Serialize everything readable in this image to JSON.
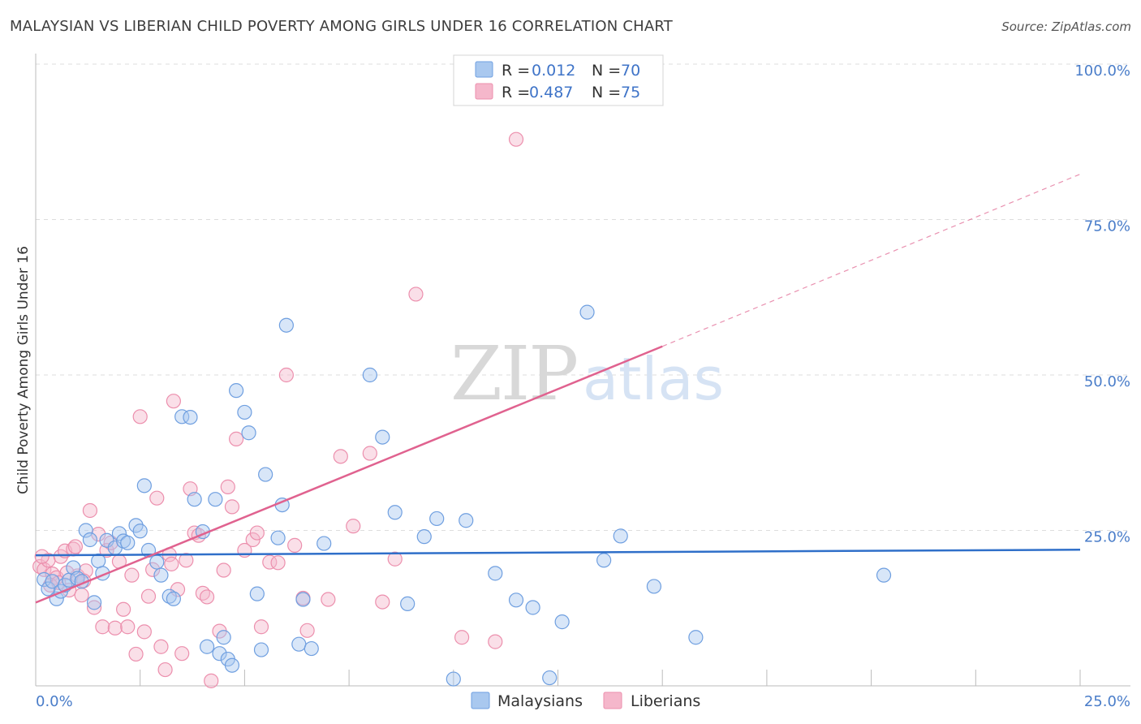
{
  "title": "MALAYSIAN VS LIBERIAN CHILD POVERTY AMONG GIRLS UNDER 16 CORRELATION CHART",
  "source": "Source: ZipAtlas.com",
  "watermark": {
    "zip": "ZIP",
    "atlas": "atlas"
  },
  "legend_top": {
    "rows": [
      {
        "r_label": "R =",
        "r_value": "0.012",
        "n_label": "N =",
        "n_value": "70"
      },
      {
        "r_label": "R =",
        "r_value": "0.487",
        "n_label": "N =",
        "n_value": "75"
      }
    ]
  },
  "legend_bottom": {
    "items": [
      "Malaysians",
      "Liberians"
    ]
  },
  "colors": {
    "blue_fill": "#a9c8ef",
    "blue_stroke": "#6f9fe0",
    "blue_line": "#2f6fc9",
    "pink_fill": "#f5b7cb",
    "pink_stroke": "#ec8fad",
    "pink_line": "#e0628f",
    "tick_text": "#4a7dc9",
    "grid": "#dddddd"
  },
  "chart_data": {
    "type": "scatter",
    "title": "MALAYSIAN VS LIBERIAN CHILD POVERTY AMONG GIRLS UNDER 16 CORRELATION CHART",
    "xlabel": "",
    "ylabel": "Child Poverty Among Girls Under 16",
    "xlim": [
      0,
      25
    ],
    "ylim": [
      0,
      100
    ],
    "x_tick_labels": [
      "0.0%",
      "25.0%"
    ],
    "y_tick_labels": [
      "25.0%",
      "50.0%",
      "75.0%",
      "100.0%"
    ],
    "y_ticks": [
      25,
      50,
      75,
      100
    ],
    "grid": true,
    "series": [
      {
        "name": "Malaysians",
        "R": 0.012,
        "N": 70,
        "trend": {
          "x0": 0,
          "y0": 21.0,
          "x1": 25,
          "y1": 21.9,
          "style": "solid"
        },
        "points": [
          [
            0.2,
            17.1
          ],
          [
            0.3,
            15.6
          ],
          [
            0.4,
            16.8
          ],
          [
            0.5,
            14.0
          ],
          [
            0.6,
            15.2
          ],
          [
            0.7,
            16.2
          ],
          [
            0.8,
            17.0
          ],
          [
            0.9,
            19.0
          ],
          [
            1.0,
            17.3
          ],
          [
            1.1,
            16.8
          ],
          [
            1.2,
            25.0
          ],
          [
            1.3,
            23.5
          ],
          [
            1.4,
            13.4
          ],
          [
            1.5,
            20.1
          ],
          [
            1.6,
            18.1
          ],
          [
            1.7,
            23.4
          ],
          [
            1.9,
            22.2
          ],
          [
            2.0,
            24.5
          ],
          [
            2.1,
            23.3
          ],
          [
            2.2,
            23.0
          ],
          [
            2.4,
            25.8
          ],
          [
            2.5,
            24.9
          ],
          [
            2.6,
            32.2
          ],
          [
            2.7,
            21.8
          ],
          [
            2.9,
            19.9
          ],
          [
            3.0,
            17.8
          ],
          [
            3.2,
            14.4
          ],
          [
            3.3,
            14.0
          ],
          [
            3.5,
            43.3
          ],
          [
            3.7,
            43.2
          ],
          [
            3.8,
            30.0
          ],
          [
            4.0,
            24.8
          ],
          [
            4.1,
            6.3
          ],
          [
            4.3,
            30.0
          ],
          [
            4.4,
            5.2
          ],
          [
            4.5,
            7.8
          ],
          [
            4.6,
            4.3
          ],
          [
            4.7,
            3.3
          ],
          [
            4.8,
            47.5
          ],
          [
            5.0,
            44.0
          ],
          [
            5.1,
            40.7
          ],
          [
            5.3,
            14.8
          ],
          [
            5.4,
            5.8
          ],
          [
            5.5,
            34.0
          ],
          [
            5.8,
            23.8
          ],
          [
            5.9,
            29.1
          ],
          [
            6.0,
            58.0
          ],
          [
            6.3,
            6.7
          ],
          [
            6.4,
            13.9
          ],
          [
            6.6,
            6.0
          ],
          [
            6.9,
            22.9
          ],
          [
            8.0,
            50.0
          ],
          [
            8.3,
            40.0
          ],
          [
            8.6,
            27.9
          ],
          [
            8.9,
            13.2
          ],
          [
            9.3,
            24.0
          ],
          [
            9.6,
            26.9
          ],
          [
            10.0,
            1.1
          ],
          [
            10.3,
            26.6
          ],
          [
            11.0,
            18.1
          ],
          [
            11.5,
            13.8
          ],
          [
            11.9,
            12.6
          ],
          [
            12.3,
            1.3
          ],
          [
            12.6,
            10.3
          ],
          [
            13.2,
            60.1
          ],
          [
            13.6,
            20.2
          ],
          [
            14.0,
            24.1
          ],
          [
            14.8,
            16.0
          ],
          [
            15.8,
            7.8
          ],
          [
            20.3,
            17.8
          ]
        ]
      },
      {
        "name": "Liberians",
        "R": 0.487,
        "N": 75,
        "trend": {
          "x0": 0,
          "y0": 13.4,
          "x1": 15,
          "y1": 54.6,
          "x2": 25,
          "y2": 82.3,
          "style": "solid-then-dashed"
        },
        "points": [
          [
            0.1,
            19.2
          ],
          [
            0.2,
            18.7
          ],
          [
            0.3,
            20.2
          ],
          [
            0.4,
            18.0
          ],
          [
            0.5,
            17.4
          ],
          [
            0.6,
            20.8
          ],
          [
            0.7,
            21.7
          ],
          [
            0.8,
            15.4
          ],
          [
            0.9,
            22.0
          ],
          [
            1.0,
            17.7
          ],
          [
            1.1,
            14.6
          ],
          [
            1.2,
            18.5
          ],
          [
            1.3,
            28.2
          ],
          [
            1.4,
            12.6
          ],
          [
            1.5,
            24.4
          ],
          [
            1.6,
            9.5
          ],
          [
            1.7,
            21.8
          ],
          [
            1.8,
            23.0
          ],
          [
            1.9,
            9.3
          ],
          [
            2.0,
            20.0
          ],
          [
            2.1,
            12.3
          ],
          [
            2.2,
            9.5
          ],
          [
            2.3,
            17.8
          ],
          [
            2.4,
            5.1
          ],
          [
            2.5,
            43.3
          ],
          [
            2.6,
            8.7
          ],
          [
            2.7,
            14.4
          ],
          [
            2.8,
            18.7
          ],
          [
            2.9,
            30.2
          ],
          [
            3.0,
            6.3
          ],
          [
            3.1,
            2.6
          ],
          [
            3.2,
            21.1
          ],
          [
            3.3,
            45.8
          ],
          [
            3.4,
            15.5
          ],
          [
            3.5,
            5.2
          ],
          [
            3.6,
            20.2
          ],
          [
            3.7,
            31.7
          ],
          [
            3.8,
            24.6
          ],
          [
            3.9,
            24.2
          ],
          [
            4.0,
            14.9
          ],
          [
            4.1,
            14.3
          ],
          [
            4.2,
            0.8
          ],
          [
            4.4,
            8.8
          ],
          [
            4.5,
            18.6
          ],
          [
            4.6,
            32.0
          ],
          [
            4.7,
            28.8
          ],
          [
            4.8,
            39.7
          ],
          [
            5.0,
            21.8
          ],
          [
            5.2,
            23.5
          ],
          [
            5.3,
            24.6
          ],
          [
            5.4,
            9.5
          ],
          [
            5.6,
            19.9
          ],
          [
            5.8,
            19.8
          ],
          [
            6.0,
            50.0
          ],
          [
            6.2,
            22.6
          ],
          [
            6.4,
            14.1
          ],
          [
            6.5,
            8.9
          ],
          [
            7.0,
            13.9
          ],
          [
            7.3,
            36.9
          ],
          [
            7.6,
            25.7
          ],
          [
            8.0,
            37.4
          ],
          [
            8.3,
            13.5
          ],
          [
            8.6,
            20.4
          ],
          [
            9.1,
            63.0
          ],
          [
            10.2,
            7.8
          ],
          [
            11.0,
            7.1
          ],
          [
            11.5,
            87.9
          ],
          [
            14.0,
            100.0
          ],
          [
            0.15,
            20.8
          ],
          [
            0.35,
            16.2
          ],
          [
            0.55,
            16.6
          ],
          [
            0.75,
            18.2
          ],
          [
            0.95,
            22.4
          ],
          [
            1.15,
            16.9
          ],
          [
            3.25,
            19.6
          ]
        ]
      }
    ]
  }
}
